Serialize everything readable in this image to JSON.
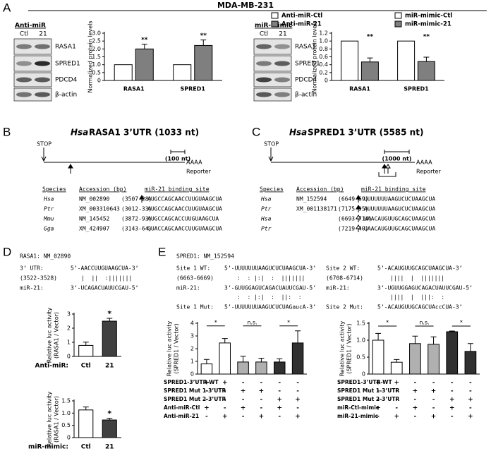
{
  "figure_title": "MDA-MB-231",
  "panel_labels": [
    "A",
    "B",
    "C",
    "D",
    "E"
  ],
  "blots": [
    {
      "treatment": "Anti-miR",
      "lanes": [
        "Ctl",
        "21"
      ],
      "proteins": [
        "RASA1",
        "SPRED1",
        "PDCD4",
        "β-actin"
      ]
    },
    {
      "treatment": "miR-mimic",
      "lanes": [
        "Ctl",
        "21"
      ],
      "proteins": [
        "RASA1",
        "SPRED1",
        "PDCD4",
        "β-actin"
      ]
    }
  ],
  "utr_maps": [
    {
      "species": "Hsa",
      "title": "RASA1 3’UTR (1033 nt)",
      "stop": "STOP",
      "poly_a": "AAAA",
      "reporter": "Reporter",
      "scale": "(100 nt)",
      "headers": [
        "Species",
        "Accession (bp)",
        "miR-21 binding site"
      ],
      "rows": [
        [
          "Hsa",
          "NM_002890",
          "(3507-28)",
          "AUGCCAGCAACCUUGUAAGCUA"
        ],
        [
          "Ptr",
          "XM_003310643",
          "(3012-33)",
          "AUGCCAGCAACCUUGUAAGCUA"
        ],
        [
          "Mmu",
          "NM_145452",
          "(3872-93)",
          "AUGCCAGCACCUUGUAAGCUA"
        ],
        [
          "Gga",
          "XM_424907",
          "(3143-64)",
          "GUACCAGCAACCUUGUAAGCUA"
        ]
      ]
    },
    {
      "species": "Hsa",
      "title": "SPRED1 3’UTR (5585 nt)",
      "stop": "STOP",
      "poly_a": "AAAA",
      "reporter": "Reporter",
      "scale": "(1000 nt)",
      "headers": [
        "Species",
        "Accession (bp)",
        "miR-21 binding site"
      ],
      "rows": [
        [
          "Hsa",
          "NM_152594",
          "(6649-69)",
          "UUUUUUUAAGUCUCUAAGCUA"
        ],
        [
          "Ptr",
          "XM_001138171",
          "(7175-95)",
          "AUUUUUUAAGUCUCUAAGCUA"
        ],
        [
          "Hsa",
          null,
          "(6693-714)",
          "UAACAUGUUGCAGCUAAGCUA"
        ],
        [
          "Ptr",
          null,
          "(7219-40)",
          "UAACAUGUUGCAGCUAAGCUA"
        ]
      ]
    }
  ],
  "rasa1_site": {
    "gene": "RASA1: NM_02890",
    "utr_label": "3’ UTR:",
    "utr_seq": "5’-AACCUUGUAAGCUA-3’",
    "position": "(3522-3528)",
    "pairing": "|  ||  :|||||||",
    "mir_label": "miR-21:",
    "mir_seq": "3’-UCAGACUAUUCGAU-5’"
  },
  "spred1_sites": {
    "gene": "SPRED1: NM_152594",
    "sites": [
      {
        "wt_label": "Site 1 WT:",
        "wt_seq": "5’-UUUUUUUAAGUCUCUAAGCUA-3’",
        "position": "(6663-6669)",
        "wt_pairing": ":  : |:|  :  |||||||",
        "mir_label": "miR-21:",
        "mir_seq": "3’-GUUGGAGUCAGACUAUUCGAU-5’",
        "mut_pairing": ":  : |:|  :  ||:  :",
        "mut_label": "Site 1 Mut:",
        "mut_seq": "5’-UUUUUUUAAGUCUCUAGaucA-3’"
      },
      {
        "wt_label": "Site 2 WT:",
        "wt_seq": "5’-ACAUGUUGCAGCUAAGCUA-3’",
        "position": "(6708-6714)",
        "wt_pairing": "||||  |  |||||||",
        "mir_label": "miR-21:",
        "mir_seq": "3’-UGUUGGAGUCAGACUAUUCGAU-5’",
        "mut_pairing": "||||  |  |||:  :",
        "mut_label": "Site 2 Mut:",
        "mut_seq": "5’-ACAUGUUGCAGCUAccCUA-3’"
      }
    ]
  },
  "chart_data": [
    {
      "type": "bar",
      "y_label": "Normalized protein levels",
      "categories": [
        "RASA1",
        "SPRED1"
      ],
      "series": [
        {
          "name": "Anti-miR-Ctl",
          "color": "#ffffff",
          "values": [
            1,
            1
          ]
        },
        {
          "name": "Anti-miR-21",
          "color": "#7f7f7f",
          "values": [
            2.0,
            2.22
          ],
          "errors": [
            0.3,
            0.35
          ]
        }
      ],
      "significance": [
        "**",
        "**"
      ],
      "ylim": [
        0,
        3
      ],
      "yticks": [
        0,
        0.5,
        {
          "value": 1,
          "label": "1.0"
        },
        1.5,
        {
          "value": 2,
          "label": "2.0"
        },
        2.5,
        {
          "value": 3,
          "label": "3.0"
        }
      ]
    },
    {
      "type": "bar",
      "y_label": "Normalized protein levels",
      "categories": [
        "RASA1",
        "SPRED1"
      ],
      "series": [
        {
          "name": "miR-mimic-Ctl",
          "color": "#ffffff",
          "values": [
            1,
            1
          ]
        },
        {
          "name": "miR-mimic-21",
          "color": "#7f7f7f",
          "values": [
            0.47,
            0.48
          ],
          "errors": [
            0.1,
            0.11
          ]
        }
      ],
      "significance": [
        "**",
        "**"
      ],
      "ylim": [
        0,
        1.2
      ],
      "yticks": [
        0,
        0.2,
        0.4,
        0.6,
        0.8,
        {
          "value": 1,
          "label": "1.0"
        },
        1.2
      ]
    },
    {
      "type": "bar",
      "y_label": [
        "Relative luc activity",
        "(RASA1 / Vector)"
      ],
      "x_label": "Anti-miR:",
      "categories": [
        "Ctl",
        "21"
      ],
      "values": [
        0.78,
        2.5
      ],
      "errors": [
        0.23,
        0.2
      ],
      "colors": [
        "#ffffff",
        "#404040"
      ],
      "significance": [
        null,
        "*"
      ],
      "ylim": [
        0,
        3
      ],
      "yticks": [
        0,
        1,
        2,
        3
      ]
    },
    {
      "type": "bar",
      "y_label": [
        "Relative luc activity",
        "(RASA1 / Vector)"
      ],
      "x_label": "miR-mimic:",
      "categories": [
        "Ctl",
        "21"
      ],
      "values": [
        1.13,
        0.72
      ],
      "errors": [
        0.12,
        0.07
      ],
      "colors": [
        "#ffffff",
        "#404040"
      ],
      "significance": [
        null,
        "*"
      ],
      "ylim": [
        0,
        1.5
      ],
      "yticks": [
        0,
        0.5,
        {
          "value": 1,
          "label": "1.0"
        },
        1.5
      ]
    },
    {
      "type": "bar",
      "y_label": [
        "Relative luc activity",
        "(SPRED1 / Vector)"
      ],
      "values": [
        0.8,
        2.45,
        0.95,
        0.95,
        0.95,
        2.45
      ],
      "errors": [
        0.35,
        0.35,
        0.45,
        0.3,
        0.25,
        0.95
      ],
      "colors": [
        "#ffffff",
        "#ffffff",
        "#b0b0b0",
        "#b0b0b0",
        "#303030",
        "#303030"
      ],
      "brackets": [
        "*",
        "n.s.",
        "*"
      ],
      "ylim": [
        0,
        4
      ],
      "yticks": [
        0,
        1,
        2,
        3,
        4
      ],
      "conditions": {
        "labels": [
          "SPRED1-3’UTR-WT",
          "SPRED1 Mut 1-3’UTR",
          "SPRED1 Mut 2-3’UTR",
          "Anti-miR-Ctl",
          "Anti-miR-21"
        ],
        "rows": [
          [
            "+",
            "+",
            "-",
            "-",
            "-",
            "-"
          ],
          [
            "-",
            "-",
            "+",
            "+",
            "-",
            "-"
          ],
          [
            "-",
            "-",
            "-",
            "-",
            "+",
            "+"
          ],
          [
            "+",
            "-",
            "+",
            "-",
            "+",
            "-"
          ],
          [
            "-",
            "+",
            "-",
            "+",
            "-",
            "+"
          ]
        ]
      }
    },
    {
      "type": "bar",
      "y_label": [
        "Relative luc activity",
        "(SPRED1 / Vector)"
      ],
      "values": [
        1.0,
        0.35,
        0.9,
        0.88,
        1.25,
        0.67
      ],
      "errors": [
        0.2,
        0.08,
        0.22,
        0.22,
        0.02,
        0.23
      ],
      "colors": [
        "#ffffff",
        "#ffffff",
        "#b0b0b0",
        "#b0b0b0",
        "#303030",
        "#303030"
      ],
      "brackets": [
        "*",
        "n.s.",
        "*"
      ],
      "ylim": [
        0,
        1.5
      ],
      "yticks": [
        0,
        0.5,
        {
          "value": 1,
          "label": "1.0"
        },
        1.5
      ],
      "conditions": {
        "labels": [
          "SPRED1-3’UTR-WT",
          "SPRED1 Mut 1-3’UTR",
          "SPRED1 Mut 2-3’UTR",
          "miR-Ctl-mimic",
          "miR-21-mimic"
        ],
        "rows": [
          [
            "+",
            "+",
            "-",
            "-",
            "-",
            "-"
          ],
          [
            "-",
            "-",
            "+",
            "+",
            "-",
            "-"
          ],
          [
            "-",
            "-",
            "-",
            "-",
            "+",
            "+"
          ],
          [
            "+",
            "-",
            "+",
            "-",
            "+",
            "-"
          ],
          [
            "-",
            "+",
            "-",
            "+",
            "-",
            "+"
          ]
        ]
      }
    }
  ]
}
